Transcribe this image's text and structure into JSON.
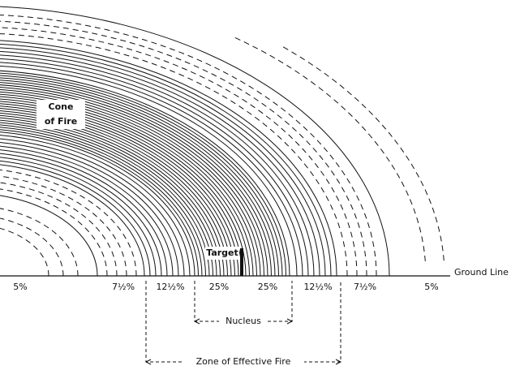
{
  "labels": {
    "cone": [
      "Cone",
      "of Fire"
    ],
    "target": "Target",
    "ground_line": "Ground Line",
    "nucleus": "Nucleus",
    "zone": "Zone of Effective Fire"
  },
  "zones": [
    "5%",
    "7½%",
    "12½%",
    "25%",
    "25%",
    "12½%",
    "7½%",
    "5%"
  ]
}
